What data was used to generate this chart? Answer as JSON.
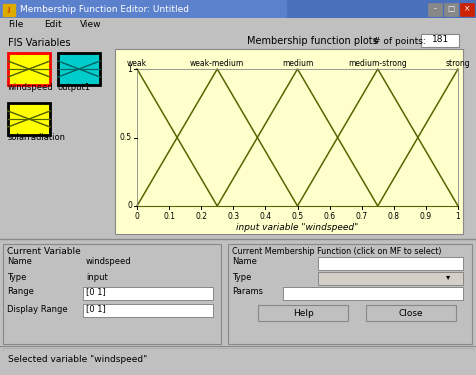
{
  "title": "Membership Function Editor: Untitled",
  "title_bar_color": "#5b7fcc",
  "title_bar_grad_left": "#3a5ea8",
  "title_text_color": "#ffffff",
  "bg_color": "#c0c0c0",
  "plot_bg_color": "#ffffcc",
  "menu_items": [
    "File",
    "Edit",
    "View"
  ],
  "fis_label": "FIS Variables",
  "mf_label": "Membership function plots",
  "df_points_label": "# of points:",
  "df_points_value": "181",
  "xlabel": "input variable \"windspeed\"",
  "mf_names": [
    "weak",
    "weak-medium",
    "medium",
    "medium-strong",
    "strong"
  ],
  "mf_peaks": [
    0.0,
    0.25,
    0.5,
    0.75,
    1.0
  ],
  "mf_lefts": [
    -0.25,
    0.0,
    0.25,
    0.5,
    0.75
  ],
  "mf_rights": [
    0.25,
    0.5,
    0.75,
    1.0,
    1.25
  ],
  "line_color": "#556600",
  "xticks": [
    0,
    0.1,
    0.2,
    0.3,
    0.4,
    0.5,
    0.6,
    0.7,
    0.8,
    0.9,
    1
  ],
  "yticks": [
    0,
    0.5,
    1
  ],
  "var_box_title": "Current Variable",
  "var_name_label": "Name",
  "var_name_value": "windspeed",
  "var_type_label": "Type",
  "var_type_value": "input",
  "var_range_label": "Range",
  "var_range_value": "[0 1]",
  "var_display_label": "Display Range",
  "var_display_value": "[0 1]",
  "mf_box_title": "Current Membership Function (click on MF to select)",
  "mf_name_label": "Name",
  "mf_type_label": "Type",
  "mf_params_label": "Params",
  "help_btn": "Help",
  "close_btn": "Close",
  "status_text": "Selected variable \"windspeed\"",
  "icon1_fill": "#ffff00",
  "icon2_fill": "#00cccc",
  "icon1_border": "#ff0000",
  "icon2_border": "#000000"
}
